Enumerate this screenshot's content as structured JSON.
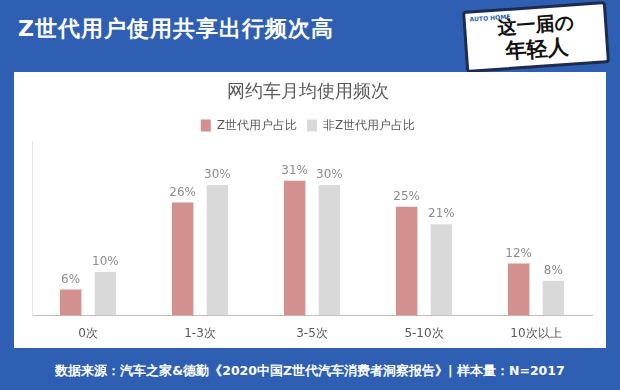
{
  "header": {
    "title": "Z世代用户使用共享出行频次高",
    "badge": [
      "这一届の",
      "年轻人"
    ],
    "badge_logo": "AUTO HOME"
  },
  "chart_data": {
    "type": "bar",
    "title": "网约车月均使用频次",
    "categories": [
      "0次",
      "1-3次",
      "3-5次",
      "5-10次",
      "10次以上"
    ],
    "series": [
      {
        "name": "Z世代用户占比",
        "color": "#d4908e",
        "values": [
          6,
          26,
          31,
          25,
          12
        ],
        "value_labels": [
          "6%",
          "26%",
          "31%",
          "25%",
          "12%"
        ]
      },
      {
        "name": "非Z世代用户占比",
        "color": "#d9d9d9",
        "values": [
          10,
          30,
          30,
          21,
          8
        ],
        "value_labels": [
          "10%",
          "30%",
          "30%",
          "21%",
          "8%"
        ]
      }
    ],
    "ylim": [
      0,
      40
    ],
    "yticks": [],
    "grid": false,
    "legend": "top",
    "data_labels": true,
    "tick_labels": "x"
  },
  "footer": {
    "source": "数据来源：汽车之家&德勤《2020中国Z世代汽车消费者洞察报告》| 样本量：N=2017"
  }
}
